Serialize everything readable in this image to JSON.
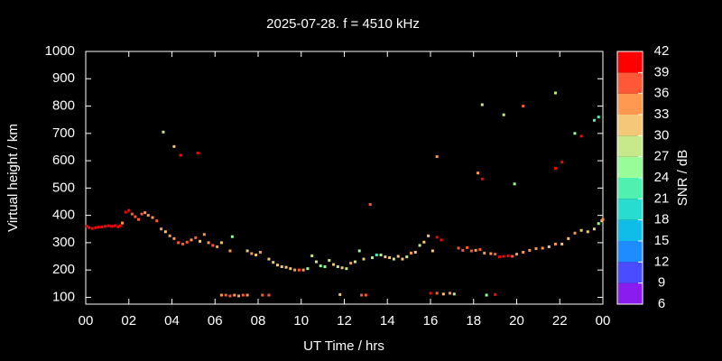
{
  "chart_data": {
    "type": "scatter",
    "title": "2025-07-28. f = 4510 kHz",
    "x_label": "UT Time / hrs",
    "y_label": "Virtual height / km",
    "xlim": [
      0,
      24
    ],
    "xticks": [
      {
        "value": 0,
        "label": "00"
      },
      {
        "value": 2,
        "label": "02"
      },
      {
        "value": 4,
        "label": "04"
      },
      {
        "value": 6,
        "label": "06"
      },
      {
        "value": 8,
        "label": "08"
      },
      10,
      12,
      14,
      16,
      18,
      20,
      22,
      {
        "value": 24,
        "label": "00"
      }
    ],
    "ylim": [
      75,
      1000
    ],
    "yticks": [
      100,
      200,
      300,
      400,
      500,
      600,
      700,
      800,
      900,
      1000
    ],
    "colorbar": {
      "label": "SNR / dB",
      "lim": [
        6,
        42
      ],
      "ticks": [
        6,
        9,
        12,
        15,
        18,
        21,
        24,
        27,
        30,
        33,
        36,
        39,
        42
      ],
      "colors": [
        "#8a1cf0",
        "#4a4cff",
        "#1e8cff",
        "#10bce8",
        "#28dcd0",
        "#50f0b0",
        "#98fc98",
        "#c8e88c",
        "#f4c878",
        "#ff9850",
        "#ff5838",
        "#ff0000"
      ]
    },
    "series": [
      {
        "name": "SNR / dB",
        "x": [
          0.05,
          0.15,
          0.3,
          0.45,
          0.6,
          0.75,
          0.9,
          1.05,
          1.2,
          1.35,
          1.5,
          1.6,
          1.7,
          1.85,
          2.0,
          2.15,
          2.3,
          2.45,
          2.6,
          2.75,
          2.9,
          3.1,
          3.3,
          3.5,
          3.7,
          3.9,
          4.1,
          4.3,
          4.5,
          4.7,
          4.9,
          5.1,
          5.3,
          5.5,
          5.7,
          5.9,
          6.1,
          6.3,
          6.7,
          6.8,
          7.5,
          7.7,
          7.9,
          8.1,
          8.5,
          8.7,
          8.9,
          9.1,
          9.3,
          9.5,
          9.7,
          9.9,
          10.1,
          10.3,
          10.5,
          10.7,
          10.9,
          11.1,
          11.3,
          11.5,
          11.7,
          11.9,
          12.1,
          12.3,
          12.5,
          12.7,
          12.9,
          13.3,
          13.5,
          13.7,
          13.9,
          14.1,
          14.3,
          14.5,
          14.7,
          14.9,
          15.1,
          15.3,
          15.5,
          15.7,
          15.9,
          16.1,
          16.3,
          16.5,
          17.3,
          17.5,
          17.7,
          17.9,
          18.1,
          18.3,
          18.5,
          18.8,
          19.0,
          19.2,
          19.4,
          19.6,
          19.8,
          20.0,
          20.3,
          20.6,
          20.9,
          21.2,
          21.5,
          21.8,
          22.1,
          22.4,
          22.7,
          23.0,
          23.3,
          23.6,
          23.8,
          23.95,
          24.0,
          6.3,
          6.5,
          6.7,
          6.9,
          7.1,
          7.3,
          7.5,
          8.2,
          8.5,
          11.8,
          12.8,
          13.0,
          16.0,
          16.3,
          16.6,
          16.9,
          17.1,
          18.6,
          19.0,
          3.6,
          4.1,
          4.4,
          5.2,
          13.2,
          16.3,
          18.2,
          18.4,
          18.4,
          19.4,
          19.9,
          20.3,
          21.8,
          21.8,
          22.1,
          22.7,
          23.0,
          23.6,
          23.8
        ],
        "values": [
          360,
          355,
          352,
          355,
          357,
          358,
          360,
          362,
          360,
          362,
          358,
          362,
          372,
          412,
          418,
          405,
          395,
          385,
          405,
          410,
          400,
          392,
          380,
          350,
          340,
          325,
          315,
          300,
          295,
          302,
          310,
          318,
          305,
          330,
          300,
          290,
          285,
          300,
          270,
          322,
          270,
          260,
          255,
          265,
          240,
          228,
          218,
          212,
          210,
          205,
          200,
          200,
          200,
          205,
          252,
          230,
          215,
          212,
          235,
          220,
          212,
          208,
          205,
          225,
          230,
          270,
          240,
          245,
          255,
          255,
          248,
          245,
          240,
          250,
          240,
          248,
          262,
          265,
          290,
          302,
          325,
          270,
          320,
          310,
          280,
          272,
          282,
          270,
          272,
          275,
          262,
          260,
          258,
          248,
          250,
          252,
          250,
          258,
          265,
          272,
          278,
          280,
          285,
          295,
          295,
          315,
          335,
          345,
          340,
          350,
          370,
          380,
          385,
          108,
          108,
          105,
          108,
          105,
          108,
          108,
          108,
          108,
          110,
          108,
          108,
          115,
          115,
          112,
          115,
          112,
          108,
          110,
          705,
          652,
          620,
          628,
          440,
          615,
          555,
          533,
          805,
          768,
          515,
          800,
          848,
          572,
          595,
          700,
          690,
          748,
          760
        ],
        "snr": [
          40,
          40,
          40,
          40,
          40,
          40,
          40,
          40,
          40,
          40,
          40,
          40,
          35,
          40,
          40,
          38,
          38,
          38,
          36,
          35,
          35,
          35,
          36,
          33,
          32,
          33,
          34,
          36,
          37,
          36,
          33,
          36,
          31,
          33,
          34,
          36,
          33,
          31,
          34,
          26,
          32,
          33,
          32,
          33,
          31,
          30,
          32,
          31,
          30,
          32,
          34,
          36,
          35,
          25,
          28,
          29,
          26,
          24,
          28,
          30,
          27,
          31,
          28,
          33,
          29,
          24,
          30,
          25,
          23,
          29,
          30,
          31,
          28,
          32,
          30,
          29,
          33,
          31,
          29,
          30,
          31,
          30,
          40,
          40,
          37,
          38,
          38,
          36,
          34,
          36,
          35,
          33,
          38,
          39,
          40,
          39,
          37,
          33,
          33,
          34,
          33,
          33,
          32,
          35,
          31,
          30,
          33,
          32,
          31,
          30,
          25,
          30,
          33,
          35,
          36,
          36,
          34,
          35,
          36,
          35,
          37,
          38,
          32,
          38,
          37,
          39,
          38,
          31,
          33,
          28,
          24,
          39,
          28,
          30,
          40,
          41,
          36,
          34,
          33,
          39,
          27,
          29,
          25,
          38,
          27,
          40,
          40,
          26,
          40,
          23,
          21
        ]
      }
    ]
  }
}
